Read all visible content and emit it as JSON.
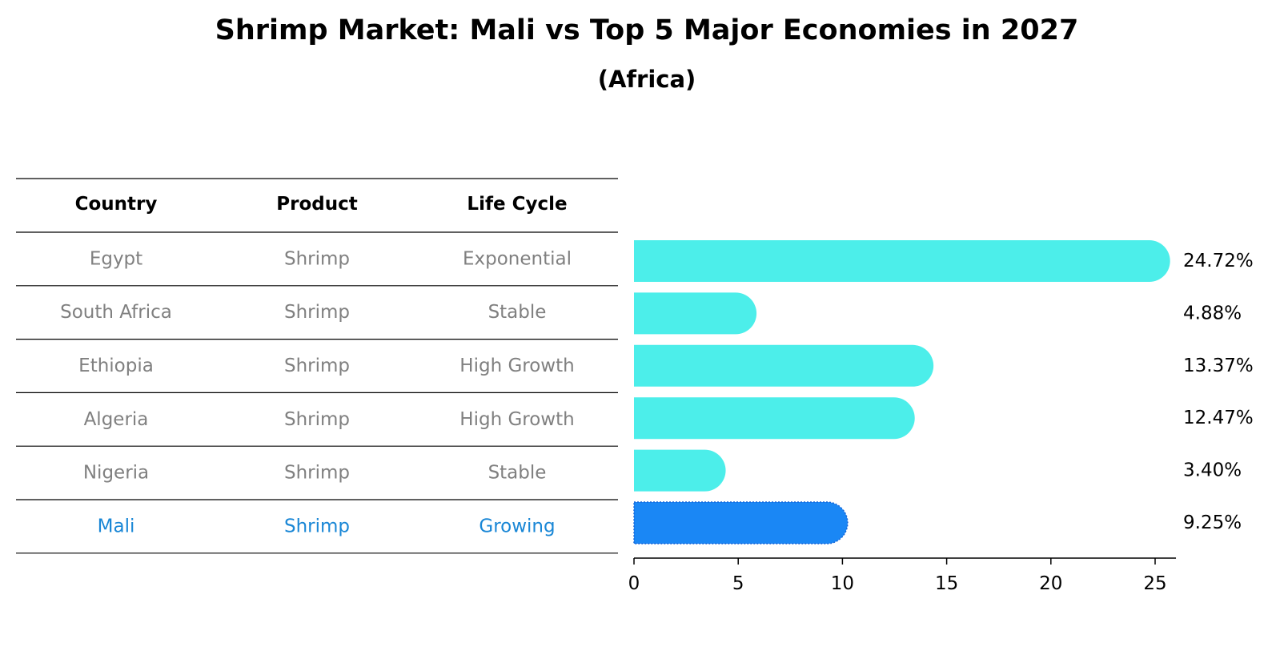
{
  "chart_data": {
    "type": "bar",
    "orientation": "horizontal",
    "title": "Shrimp Market: Mali vs Top 5 Major Economies in 2027",
    "subtitle": "(Africa)",
    "xlabel": "",
    "ylabel": "",
    "xlim": [
      0,
      26
    ],
    "xticks": [
      0,
      5,
      10,
      15,
      20,
      25
    ],
    "grid": false,
    "categories": [
      "Egypt",
      "South Africa",
      "Ethiopia",
      "Algeria",
      "Nigeria",
      "Mali"
    ],
    "values": [
      24.72,
      4.88,
      13.37,
      12.47,
      3.4,
      9.25
    ],
    "value_labels": [
      "24.72%",
      "4.88%",
      "13.37%",
      "12.47%",
      "3.40%",
      "9.25%"
    ],
    "highlight_index": 5,
    "colors": {
      "bar": "#4CEEEA",
      "highlight_bar": "#1A87F5",
      "table_text": "#808080",
      "highlight_text": "#1A87D6",
      "rule": "#000000"
    }
  },
  "table": {
    "headers": [
      "Country",
      "Product",
      "Life Cycle"
    ],
    "rows": [
      [
        "Egypt",
        "Shrimp",
        "Exponential"
      ],
      [
        "South Africa",
        "Shrimp",
        "Stable"
      ],
      [
        "Ethiopia",
        "Shrimp",
        "High Growth"
      ],
      [
        "Algeria",
        "Shrimp",
        "High Growth"
      ],
      [
        "Nigeria",
        "Shrimp",
        "Stable"
      ],
      [
        "Mali",
        "Shrimp",
        "Growing"
      ]
    ]
  }
}
